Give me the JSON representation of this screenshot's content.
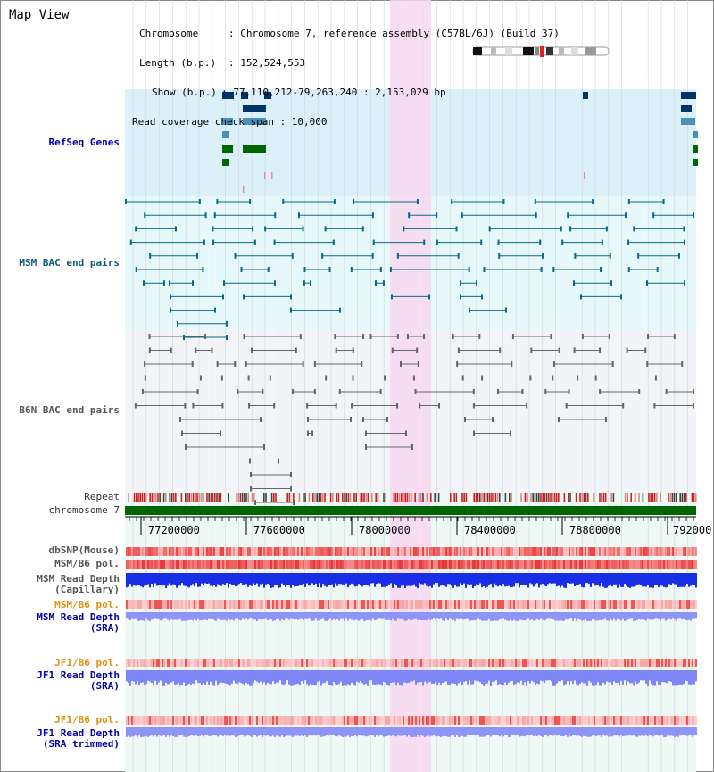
{
  "title": "Map View",
  "info": {
    "chromosome_key": "Chromosome",
    "chromosome_val": ": Chromosome 7, reference assembly (C57BL/6J) (Build 37)",
    "length_key": "Length (b.p.)",
    "length_val": ": 152,524,553",
    "show_key": "Show (b.p.)",
    "show_val": ": 77,110,212-79,263,240 : 2,153,029 bp",
    "coverage_line": "Read coverage check span : 10,000"
  },
  "tracks": {
    "refseq": "RefSeq Genes",
    "msm_bac": "MSM BAC end pairs",
    "b6n_bac": "B6N BAC end pairs",
    "repeat": "Repeat",
    "chromosome": "chromosome 7",
    "dbsnp": "dbSNP(Mouse)",
    "msm_b6_pol_1": "MSM/B6 pol.",
    "msm_read_depth_cap": "MSM Read Depth\n(Capillary)",
    "msm_b6_pol_2": "MSM/B6 pol.",
    "msm_read_depth_sra": "MSM Read Depth\n(SRA)",
    "jf1_b6_pol_1": "JF1/B6 pol.",
    "jf1_read_depth_sra": "JF1 Read Depth\n(SRA)",
    "jf1_b6_pol_2": "JF1/B6 pol.",
    "jf1_read_depth_trim": "JF1 Read Depth\n(SRA trimmed)"
  },
  "axis_ticks": [
    "77200000",
    "77600000",
    "78000000",
    "78400000",
    "78800000",
    "792000"
  ],
  "colors": {
    "refseq_bg": "#dcf0fa",
    "msm_bg": "#e6f8fa",
    "highlight": "#f7d8f0",
    "chrom_bar": "#006600",
    "depth_blue": "#2233ee",
    "depth_light": "#8888ff"
  }
}
